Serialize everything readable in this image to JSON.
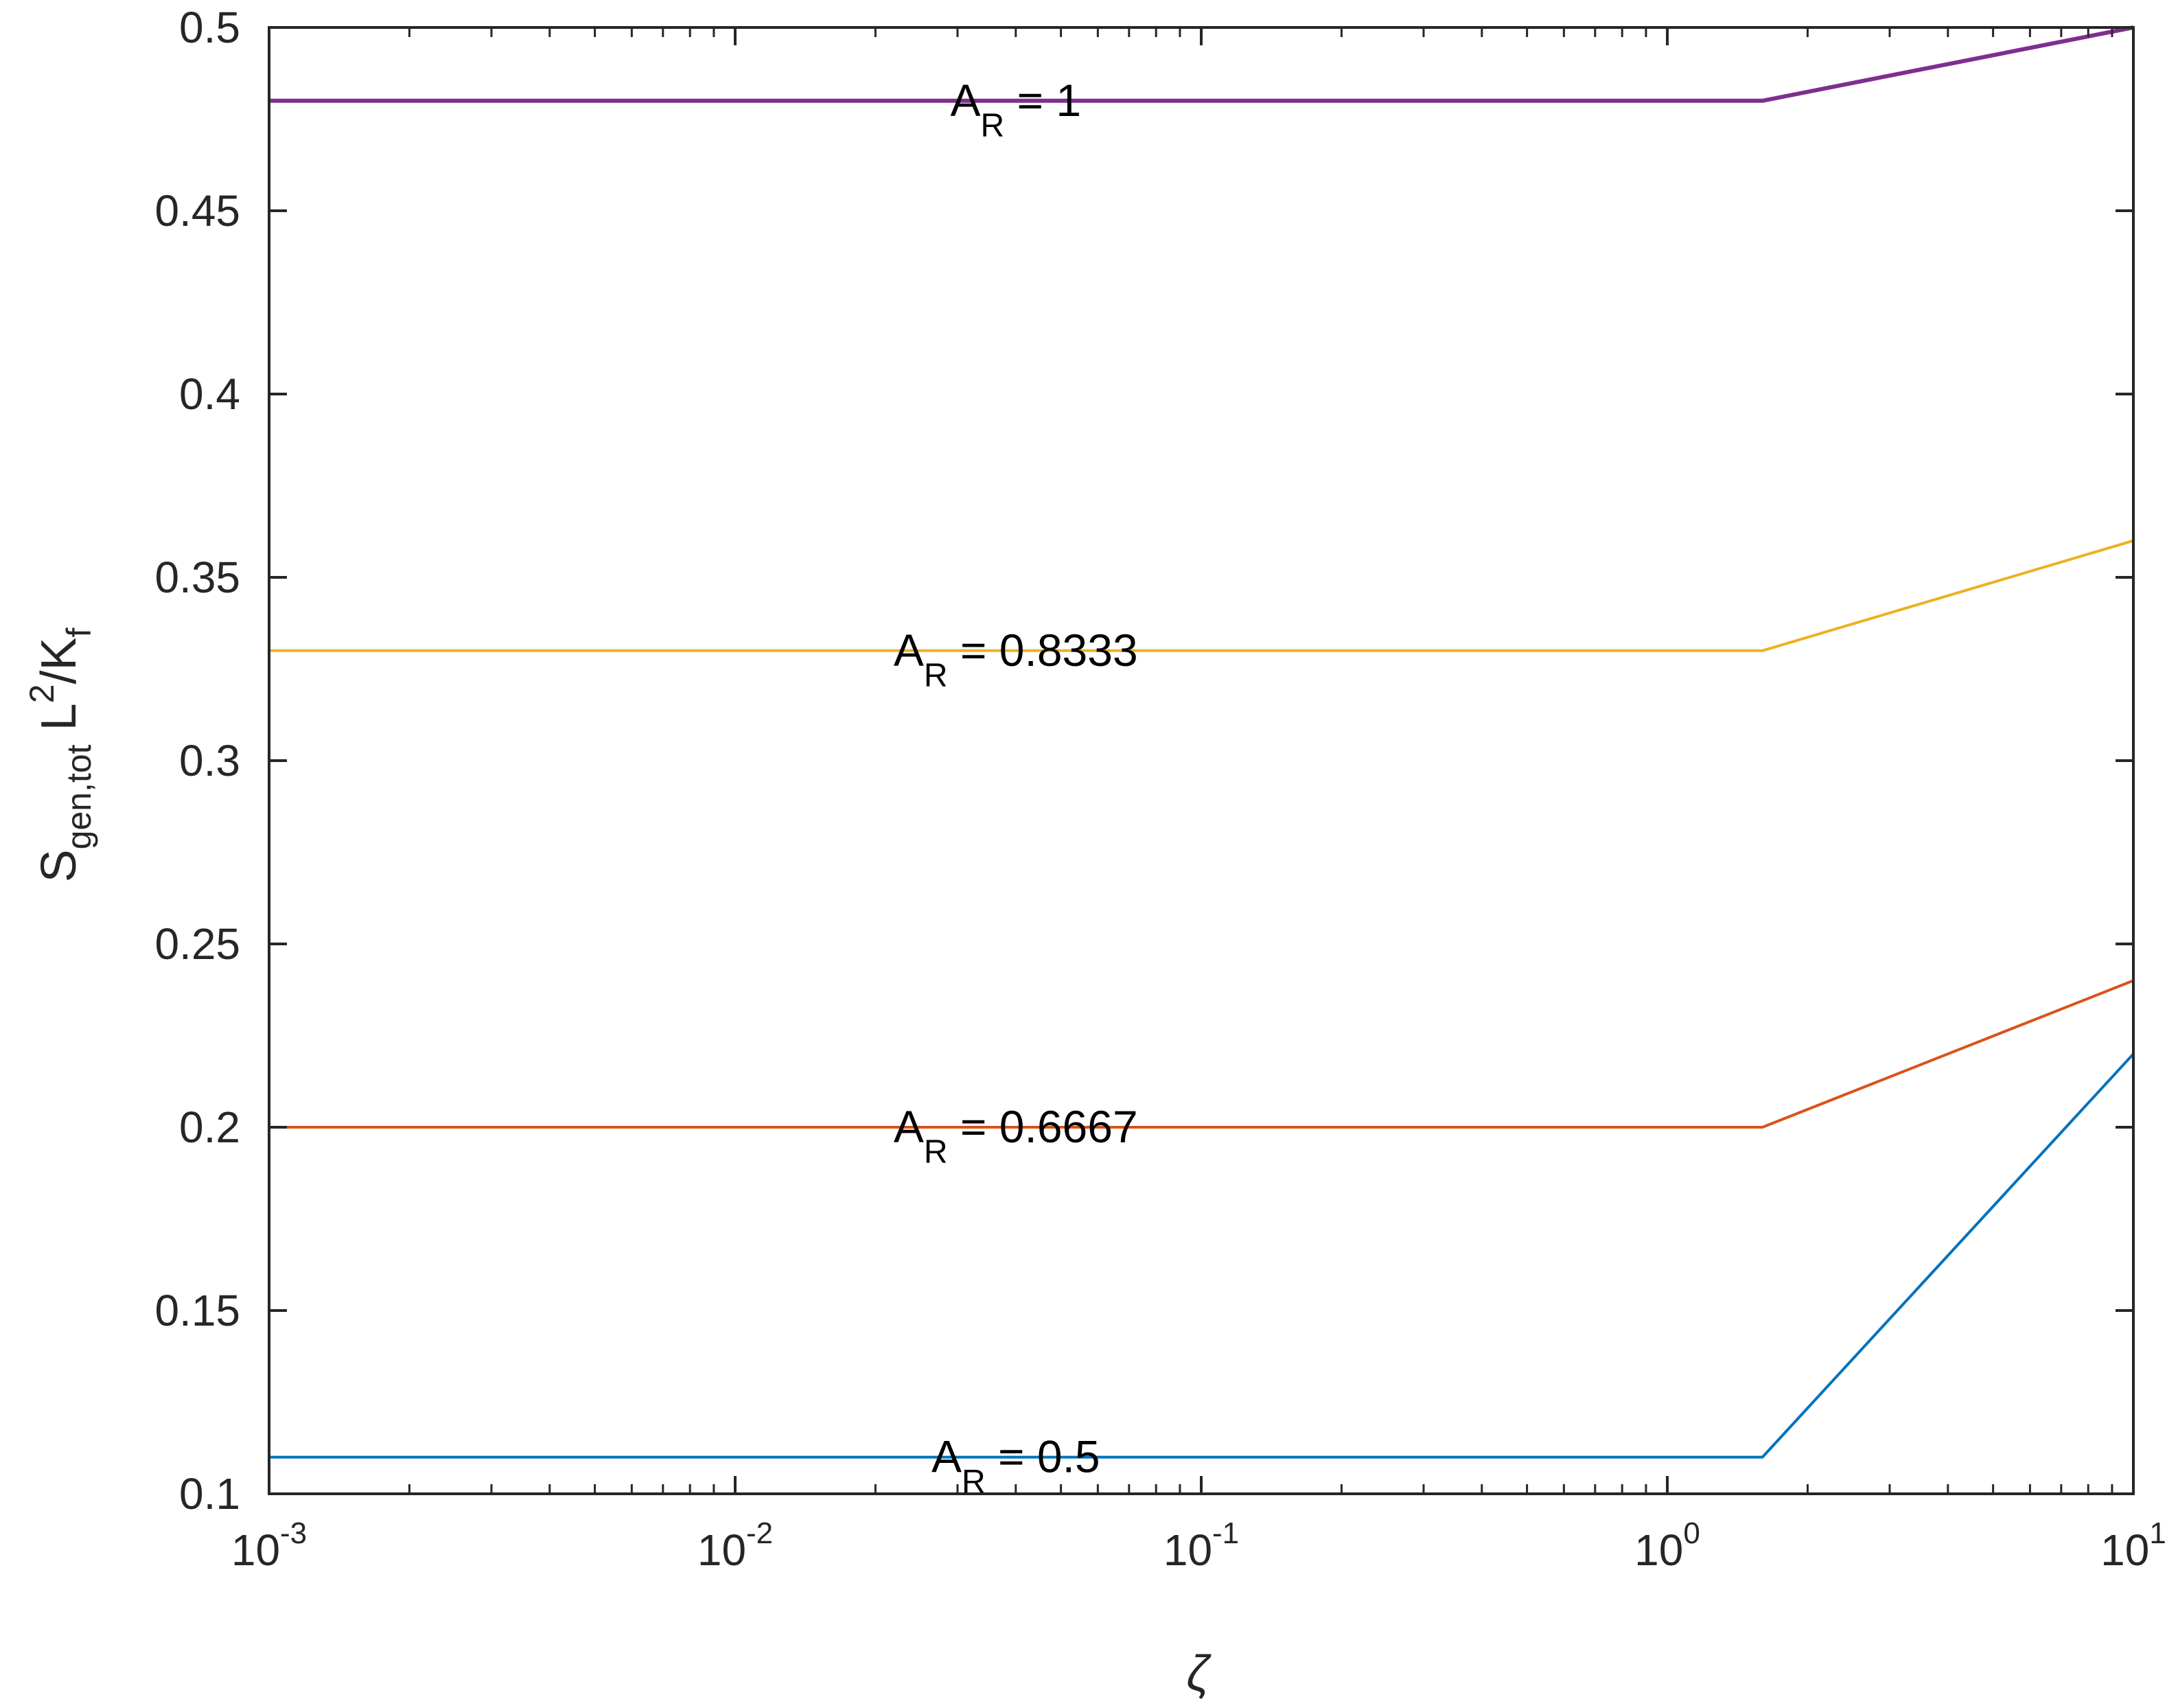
{
  "chart_data": {
    "type": "line",
    "xscale": "log",
    "xlim": [
      0.001,
      10
    ],
    "ylim": [
      0.1,
      0.5
    ],
    "grid": false,
    "x_ticks": [
      {
        "base": "10",
        "exp": "-3",
        "value": 0.001
      },
      {
        "base": "10",
        "exp": "-2",
        "value": 0.01
      },
      {
        "base": "10",
        "exp": "-1",
        "value": 0.1
      },
      {
        "base": "10",
        "exp": "0",
        "value": 1
      },
      {
        "base": "10",
        "exp": "1",
        "value": 10
      }
    ],
    "y_ticks": [
      {
        "label": "0.1",
        "value": 0.1
      },
      {
        "label": "0.15",
        "value": 0.15
      },
      {
        "label": "0.2",
        "value": 0.2
      },
      {
        "label": "0.25",
        "value": 0.25
      },
      {
        "label": "0.3",
        "value": 0.3
      },
      {
        "label": "0.35",
        "value": 0.35
      },
      {
        "label": "0.4",
        "value": 0.4
      },
      {
        "label": "0.45",
        "value": 0.45
      },
      {
        "label": "0.5",
        "value": 0.5
      }
    ],
    "xlabel": "ζ",
    "ylabel": {
      "main": "S",
      "sub": "gen,tot",
      "mid": " L",
      "sup": "2",
      "slash": "/K",
      "sub2": "f"
    },
    "series": [
      {
        "name": "A_R = 0.5",
        "label_main": "A",
        "label_sub": "R",
        "label_rest": " = 0.5",
        "color": "#0072BD",
        "x": [
          0.001,
          1.6,
          10
        ],
        "y": [
          0.11,
          0.11,
          0.22
        ],
        "label_x": 0.04,
        "label_y": 0.11
      },
      {
        "name": "A_R = 0.6667",
        "label_main": "A",
        "label_sub": "R",
        "label_rest": " = 0.6667",
        "color": "#D95319",
        "x": [
          0.001,
          1.6,
          10
        ],
        "y": [
          0.2,
          0.2,
          0.24
        ],
        "label_x": 0.04,
        "label_y": 0.2
      },
      {
        "name": "A_R = 0.8333",
        "label_main": "A",
        "label_sub": "R",
        "label_rest": " = 0.8333",
        "color": "#EDB120",
        "x": [
          0.001,
          1.6,
          10
        ],
        "y": [
          0.33,
          0.33,
          0.36
        ],
        "label_x": 0.04,
        "label_y": 0.33
      },
      {
        "name": "A_R = 1",
        "label_main": "A",
        "label_sub": "R",
        "label_rest": " = 1",
        "color": "#7E2F8E",
        "x": [
          0.001,
          1.6,
          10
        ],
        "y": [
          0.48,
          0.48,
          0.5
        ],
        "label_x": 0.04,
        "label_y": 0.48
      }
    ]
  }
}
